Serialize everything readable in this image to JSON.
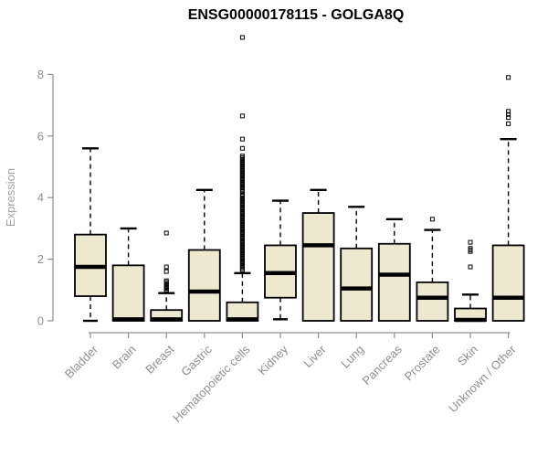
{
  "page": {
    "background": "#ffffff"
  },
  "header": {
    "title": "ENSG00000178115 - GOLGA8Q"
  },
  "chart_data": {
    "type": "boxplot",
    "title": "ENSG00000178115 - GOLGA8Q",
    "xlabel": "",
    "ylabel": "Expression",
    "ylim": [
      0,
      9.4
    ],
    "yticks": [
      0,
      2,
      4,
      6,
      8
    ],
    "grid": false,
    "legend": null,
    "categories": [
      "Bladder",
      "Brain",
      "Breast",
      "Gastric",
      "Hematopoietic cells",
      "Kidney",
      "Liver",
      "Lung",
      "Pancreas",
      "Prostate",
      "Skin",
      "Unknown / Other"
    ],
    "boxes": [
      {
        "category": "Bladder",
        "whisker_low": 0,
        "q1": 0.8,
        "median": 1.75,
        "q3": 2.8,
        "whisker_high": 5.6,
        "outliers": []
      },
      {
        "category": "Brain",
        "whisker_low": 0,
        "q1": 0,
        "median": 0.05,
        "q3": 1.8,
        "whisker_high": 3.0,
        "outliers": []
      },
      {
        "category": "Breast",
        "whisker_low": 0,
        "q1": 0,
        "median": 0.05,
        "q3": 0.35,
        "whisker_high": 0.9,
        "outliers": [
          0.95,
          1.0,
          1.05,
          1.1,
          1.15,
          1.2,
          1.25,
          1.3,
          1.6,
          1.75,
          2.85
        ]
      },
      {
        "category": "Gastric",
        "whisker_low": 0,
        "q1": 0,
        "median": 0.95,
        "q3": 2.3,
        "whisker_high": 4.25,
        "outliers": []
      },
      {
        "category": "Hematopoietic cells",
        "whisker_low": 0,
        "q1": 0,
        "median": 0.05,
        "q3": 0.6,
        "whisker_high": 1.55,
        "outliers": [
          1.65,
          1.7,
          1.75,
          1.8,
          1.85,
          1.9,
          1.95,
          2.0,
          2.05,
          2.1,
          2.15,
          2.2,
          2.25,
          2.3,
          2.35,
          2.4,
          2.45,
          2.5,
          2.55,
          2.6,
          2.65,
          2.7,
          2.75,
          2.8,
          2.85,
          2.9,
          2.95,
          3.0,
          3.05,
          3.1,
          3.15,
          3.2,
          3.25,
          3.3,
          3.35,
          3.4,
          3.45,
          3.5,
          3.55,
          3.6,
          3.65,
          3.7,
          3.75,
          3.8,
          3.85,
          3.9,
          3.95,
          4.0,
          4.05,
          4.1,
          4.2,
          4.25,
          4.3,
          4.35,
          4.4,
          4.45,
          4.5,
          4.55,
          4.6,
          4.65,
          4.7,
          4.75,
          4.8,
          4.85,
          4.9,
          4.95,
          5.0,
          5.05,
          5.1,
          5.15,
          5.2,
          5.25,
          5.3,
          5.35,
          5.6,
          5.9,
          6.65,
          9.2
        ]
      },
      {
        "category": "Kidney",
        "whisker_low": 0.05,
        "q1": 0.75,
        "median": 1.55,
        "q3": 2.45,
        "whisker_high": 3.9,
        "outliers": []
      },
      {
        "category": "Liver",
        "whisker_low": 0,
        "q1": 0,
        "median": 2.45,
        "q3": 3.5,
        "whisker_high": 4.25,
        "outliers": []
      },
      {
        "category": "Lung",
        "whisker_low": 0,
        "q1": 0,
        "median": 1.05,
        "q3": 2.35,
        "whisker_high": 3.7,
        "outliers": []
      },
      {
        "category": "Pancreas",
        "whisker_low": 0,
        "q1": 0,
        "median": 1.5,
        "q3": 2.5,
        "whisker_high": 3.3,
        "outliers": []
      },
      {
        "category": "Prostate",
        "whisker_low": 0,
        "q1": 0,
        "median": 0.75,
        "q3": 1.25,
        "whisker_high": 2.95,
        "outliers": [
          3.3
        ]
      },
      {
        "category": "Skin",
        "whisker_low": 0,
        "q1": 0,
        "median": 0.03,
        "q3": 0.4,
        "whisker_high": 0.85,
        "outliers": [
          1.75,
          2.25,
          2.3,
          2.35,
          2.55
        ]
      },
      {
        "category": "Unknown / Other",
        "whisker_low": 0,
        "q1": 0,
        "median": 0.75,
        "q3": 2.45,
        "whisker_high": 5.9,
        "outliers": [
          6.4,
          6.6,
          6.7,
          6.8,
          7.9
        ]
      }
    ],
    "colors": {
      "box_fill": "#ede8d0",
      "box_stroke": "#000000",
      "median": "#000000",
      "whisker": "#000000",
      "outlier_stroke": "#000000",
      "axis": "#909090",
      "tick_label": "#8f8f8f",
      "axis_title": "#a3a3a3",
      "title": "#000000",
      "background": "#ffffff"
    }
  }
}
